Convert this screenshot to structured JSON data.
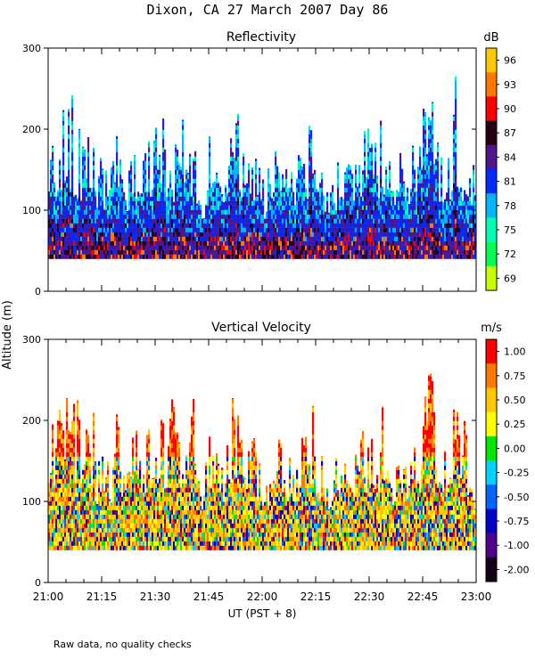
{
  "figure": {
    "title": "Dixon, CA 27 March 2007  Day  86",
    "xlabel": "UT  (PST + 8)",
    "ylabel": "Altitude (m)",
    "footnote": "Raw data, no quality checks"
  },
  "chart_data": [
    {
      "type": "heatmap",
      "title": "Reflectivity",
      "colorbar_unit": "dB",
      "xlim_minutes_after_21UT": [
        0,
        120
      ],
      "ylim": [
        0,
        300
      ],
      "yticks": [
        0,
        100,
        200,
        300
      ],
      "ytick_labels": [
        "0",
        "100",
        "200",
        "300"
      ],
      "data_floor_altitude": 40,
      "colorbar_labels": [
        "96",
        "93",
        "90",
        "87",
        "84",
        "81",
        "78",
        "75",
        "72",
        "69"
      ],
      "colorbar_colors": [
        "#ffc800",
        "#ff7800",
        "#ff0000",
        "#280014",
        "#50148c",
        "#0028ff",
        "#00b4ff",
        "#00ffb4",
        "#00ff50",
        "#c8ff00"
      ],
      "seed": 7
    },
    {
      "type": "heatmap",
      "title": "Vertical Velocity",
      "colorbar_unit": "m/s",
      "xlim_minutes_after_21UT": [
        0,
        120
      ],
      "ylim": [
        0,
        300
      ],
      "yticks": [
        0,
        100,
        200,
        300
      ],
      "ytick_labels": [
        "0",
        "100",
        "200",
        "300"
      ],
      "data_floor_altitude": 40,
      "colorbar_labels": [
        "1.00",
        "0.75",
        "0.50",
        "0.25",
        "0.00",
        "-0.25",
        "-0.50",
        "-0.75",
        "-1.00",
        "-2.00"
      ],
      "colorbar_colors": [
        "#ff0000",
        "#ff7800",
        "#ffc800",
        "#ffff00",
        "#00e600",
        "#00d2ff",
        "#0064ff",
        "#0000c8",
        "#50008c",
        "#140014"
      ],
      "seed": 13
    }
  ],
  "time_axis": {
    "tick_labels": [
      "21:00",
      "21:15",
      "21:30",
      "21:45",
      "22:00",
      "22:15",
      "22:30",
      "22:45",
      "23:00"
    ],
    "label_minutes": [
      0,
      15,
      30,
      45,
      60,
      75,
      90,
      105,
      120
    ],
    "minor_step_minutes": 5
  },
  "profile_tops": [
    [
      0,
      150
    ],
    [
      1,
      200
    ],
    [
      2,
      140
    ],
    [
      3,
      210
    ],
    [
      4,
      230
    ],
    [
      5,
      200
    ],
    [
      6,
      240
    ],
    [
      7,
      230
    ],
    [
      8,
      260
    ],
    [
      9,
      200
    ],
    [
      10,
      150
    ],
    [
      11,
      200
    ],
    [
      12,
      190
    ],
    [
      13,
      200
    ],
    [
      14,
      130
    ],
    [
      15,
      160
    ],
    [
      16,
      150
    ],
    [
      17,
      140
    ],
    [
      18,
      150
    ],
    [
      19,
      200
    ],
    [
      20,
      180
    ],
    [
      21,
      150
    ],
    [
      22,
      120
    ],
    [
      23,
      150
    ],
    [
      24,
      180
    ],
    [
      25,
      200
    ],
    [
      26,
      210
    ],
    [
      27,
      170
    ],
    [
      28,
      200
    ],
    [
      29,
      230
    ],
    [
      30,
      190
    ],
    [
      31,
      180
    ],
    [
      32,
      200
    ],
    [
      33,
      180
    ],
    [
      34,
      220
    ],
    [
      35,
      240
    ],
    [
      36,
      260
    ],
    [
      37,
      220
    ],
    [
      38,
      200
    ],
    [
      39,
      160
    ],
    [
      40,
      220
    ],
    [
      41,
      230
    ],
    [
      42,
      130
    ],
    [
      43,
      120
    ],
    [
      44,
      130
    ],
    [
      45,
      200
    ],
    [
      46,
      180
    ],
    [
      47,
      190
    ],
    [
      48,
      150
    ],
    [
      49,
      140
    ],
    [
      50,
      180
    ],
    [
      51,
      200
    ],
    [
      52,
      210
    ],
    [
      53,
      240
    ],
    [
      54,
      200
    ],
    [
      55,
      160
    ],
    [
      56,
      150
    ],
    [
      57,
      180
    ],
    [
      58,
      160
    ],
    [
      59,
      150
    ],
    [
      60,
      140
    ],
    [
      61,
      130
    ],
    [
      62,
      150
    ],
    [
      63,
      160
    ],
    [
      64,
      170
    ],
    [
      65,
      160
    ],
    [
      66,
      150
    ],
    [
      67,
      140
    ],
    [
      68,
      150
    ],
    [
      69,
      130
    ],
    [
      70,
      160
    ],
    [
      71,
      150
    ],
    [
      72,
      200
    ],
    [
      73,
      180
    ],
    [
      74,
      220
    ],
    [
      75,
      160
    ],
    [
      76,
      140
    ],
    [
      77,
      150
    ],
    [
      78,
      130
    ],
    [
      79,
      120
    ],
    [
      80,
      130
    ],
    [
      81,
      150
    ],
    [
      82,
      160
    ],
    [
      83,
      140
    ],
    [
      84,
      150
    ],
    [
      85,
      140
    ],
    [
      86,
      150
    ],
    [
      87,
      130
    ],
    [
      88,
      200
    ],
    [
      89,
      180
    ],
    [
      90,
      200
    ],
    [
      91,
      190
    ],
    [
      92,
      160
    ],
    [
      93,
      190
    ],
    [
      94,
      200
    ],
    [
      95,
      160
    ],
    [
      96,
      150
    ],
    [
      97,
      140
    ],
    [
      98,
      170
    ],
    [
      99,
      160
    ],
    [
      100,
      150
    ],
    [
      101,
      160
    ],
    [
      102,
      180
    ],
    [
      103,
      160
    ],
    [
      104,
      150
    ],
    [
      105,
      200
    ],
    [
      106,
      240
    ],
    [
      107,
      260
    ],
    [
      108,
      220
    ],
    [
      109,
      180
    ],
    [
      110,
      150
    ],
    [
      111,
      160
    ],
    [
      112,
      200
    ],
    [
      113,
      220
    ],
    [
      114,
      260
    ],
    [
      115,
      220
    ],
    [
      116,
      200
    ],
    [
      117,
      180
    ],
    [
      118,
      160
    ],
    [
      119,
      150
    ],
    [
      120,
      130
    ]
  ]
}
